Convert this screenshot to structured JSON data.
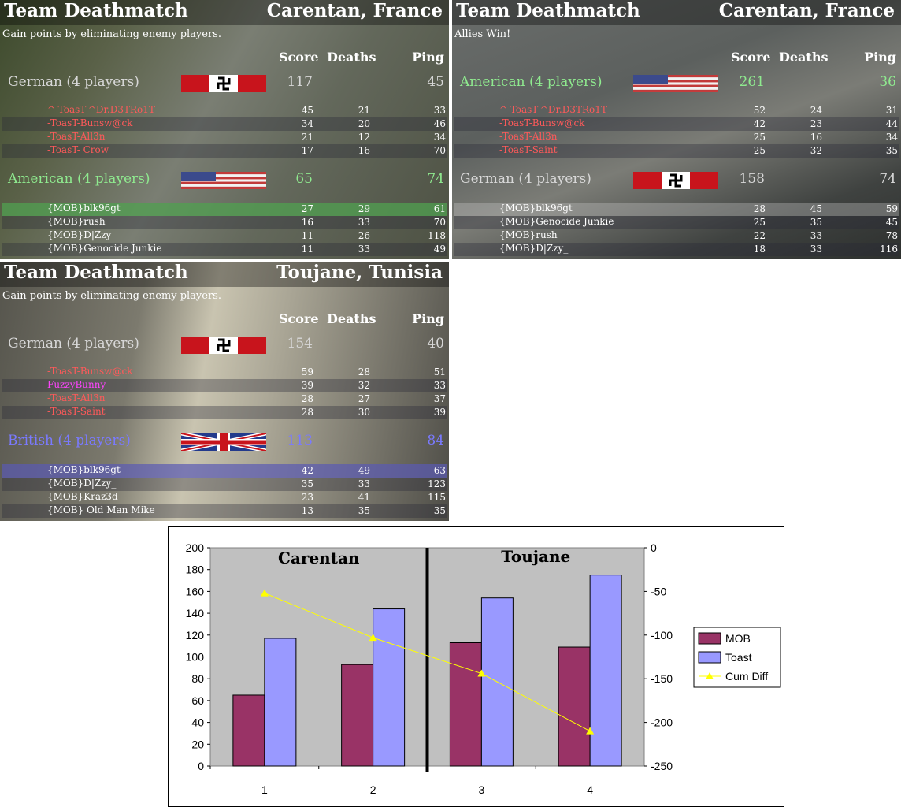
{
  "panels": [
    {
      "title": "Team Deathmatch",
      "map": "Carentan, France",
      "subtitle": "Gain points by eliminating enemy players.",
      "columns": {
        "score": "Score",
        "deaths": "Deaths",
        "ping": "Ping"
      },
      "teams": [
        {
          "name": "German (4 players)",
          "score": "117",
          "ping": "45",
          "color": "#d8d8d8",
          "flag": "german-flag",
          "players": [
            {
              "name": "^-ToasT-^Dr.D3TRo1T",
              "score": "45",
              "deaths": "21",
              "ping": "33"
            },
            {
              "name": "-ToasT-Bunsw@ck",
              "score": "34",
              "deaths": "20",
              "ping": "46"
            },
            {
              "name": "-ToasT-All3n",
              "score": "21",
              "deaths": "12",
              "ping": "34"
            },
            {
              "name": "-ToasT- Crow",
              "score": "17",
              "deaths": "16",
              "ping": "70"
            }
          ]
        },
        {
          "name": "American (4 players)",
          "score": "65",
          "ping": "74",
          "color": "#8fea8f",
          "flag": "american-flag",
          "players": [
            {
              "name": "{MOB}blk96gt",
              "score": "27",
              "deaths": "29",
              "ping": "61"
            },
            {
              "name": "{MOB}rush",
              "score": "16",
              "deaths": "33",
              "ping": "70"
            },
            {
              "name": "{MOB}D|Zzy_",
              "score": "11",
              "deaths": "26",
              "ping": "118"
            },
            {
              "name": "{MOB}Genocide Junkie",
              "score": "11",
              "deaths": "33",
              "ping": "49"
            }
          ]
        }
      ]
    },
    {
      "title": "Team Deathmatch",
      "map": "Carentan, France",
      "subtitle": "Allies Win!",
      "columns": {
        "score": "Score",
        "deaths": "Deaths",
        "ping": "Ping"
      },
      "teams": [
        {
          "name": "American (4 players)",
          "score": "261",
          "ping": "36",
          "color": "#8fea8f",
          "flag": "american-flag",
          "players": [
            {
              "name": "^-ToasT-^Dr.D3TRo1T",
              "score": "52",
              "deaths": "24",
              "ping": "31"
            },
            {
              "name": "-ToasT-Bunsw@ck",
              "score": "42",
              "deaths": "23",
              "ping": "44"
            },
            {
              "name": "-ToasT-All3n",
              "score": "25",
              "deaths": "16",
              "ping": "34"
            },
            {
              "name": "-ToasT-Saint",
              "score": "25",
              "deaths": "32",
              "ping": "35"
            }
          ]
        },
        {
          "name": "German (4 players)",
          "score": "158",
          "ping": "74",
          "color": "#d8d8d8",
          "flag": "german-flag",
          "players": [
            {
              "name": "{MOB}blk96gt",
              "score": "28",
              "deaths": "45",
              "ping": "59"
            },
            {
              "name": "{MOB}Genocide Junkie",
              "score": "25",
              "deaths": "35",
              "ping": "45"
            },
            {
              "name": "{MOB}rush",
              "score": "22",
              "deaths": "33",
              "ping": "78"
            },
            {
              "name": "{MOB}D|Zzy_",
              "score": "18",
              "deaths": "33",
              "ping": "116"
            }
          ]
        }
      ]
    },
    {
      "title": "Team Deathmatch",
      "map": "Toujane, Tunisia",
      "subtitle": "Gain points by eliminating enemy players.",
      "columns": {
        "score": "Score",
        "deaths": "Deaths",
        "ping": "Ping"
      },
      "teams": [
        {
          "name": "German (4 players)",
          "score": "154",
          "ping": "40",
          "color": "#d8d8d8",
          "flag": "german-flag",
          "players": [
            {
              "name": "-ToasT-Bunsw@ck",
              "score": "59",
              "deaths": "28",
              "ping": "51"
            },
            {
              "name": "FuzzyBunny",
              "score": "39",
              "deaths": "32",
              "ping": "33"
            },
            {
              "name": "-ToasT-All3n",
              "score": "28",
              "deaths": "27",
              "ping": "37"
            },
            {
              "name": "-ToasT-Saint",
              "score": "28",
              "deaths": "30",
              "ping": "39"
            }
          ]
        },
        {
          "name": "British (4 players)",
          "score": "113",
          "ping": "84",
          "color": "#7a7aff",
          "flag": "british-flag",
          "players": [
            {
              "name": "{MOB}blk96gt",
              "score": "42",
              "deaths": "49",
              "ping": "63"
            },
            {
              "name": "{MOB}D|Zzy_",
              "score": "35",
              "deaths": "33",
              "ping": "123"
            },
            {
              "name": "{MOB}Kraz3d",
              "score": "23",
              "deaths": "41",
              "ping": "115"
            },
            {
              "name": "{MOB} Old Man Mike",
              "score": "13",
              "deaths": "35",
              "ping": "35"
            }
          ]
        }
      ]
    }
  ],
  "chart_data": {
    "type": "bar",
    "categories": [
      "1",
      "2",
      "3",
      "4"
    ],
    "series": [
      {
        "name": "MOB",
        "values": [
          65,
          93,
          113,
          109
        ],
        "color": "#993366"
      },
      {
        "name": "Toast",
        "values": [
          117,
          144,
          154,
          175
        ],
        "color": "#9999ff"
      },
      {
        "name": "Cum Diff",
        "values": [
          -52,
          -103,
          -144,
          -210
        ],
        "color": "#ffff00",
        "axis": "secondary",
        "kind": "line"
      }
    ],
    "ylim": [
      0,
      200
    ],
    "y_ticks": [
      "0",
      "20",
      "40",
      "60",
      "80",
      "100",
      "120",
      "140",
      "160",
      "180",
      "200"
    ],
    "y2lim": [
      -250,
      0
    ],
    "y2_ticks": [
      "-250",
      "-200",
      "-150",
      "-100",
      "-50",
      "0"
    ],
    "annotations": [
      "Carentan",
      "Toujane"
    ],
    "legend_position": "right",
    "plot_background": "#c0c0c0"
  }
}
